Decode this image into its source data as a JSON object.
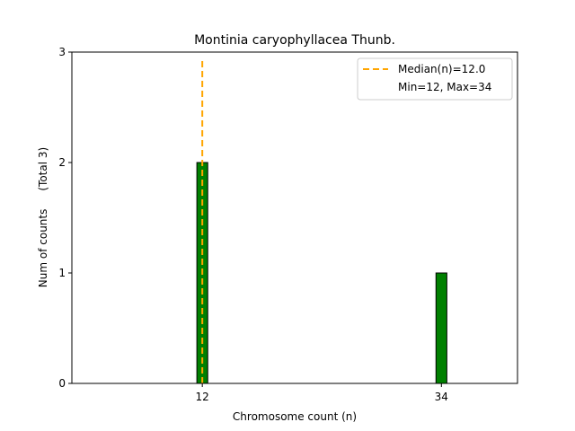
{
  "chart_data": {
    "type": "bar",
    "title": "Montinia caryophyllacea Thunb.",
    "xlabel": "Chromosome count (n)",
    "ylabel": "Num of counts",
    "ylabel_note": "(Total 3)",
    "categories": [
      12,
      34
    ],
    "values": [
      2,
      1
    ],
    "xlim": [
      0,
      41
    ],
    "ylim": [
      0,
      3
    ],
    "yticks": [
      0,
      1,
      2,
      3
    ],
    "xticks": [
      12,
      34
    ],
    "bar_color": "#008000",
    "bar_edge_color": "#000000",
    "median": {
      "value": 12.0,
      "label": "Median(n)=12.0",
      "color": "#FFA500",
      "style": "dashed"
    },
    "legend": {
      "placement": "top-right",
      "entries": [
        "Median(n)=12.0",
        "Min=12, Max=34"
      ]
    },
    "grid": false
  }
}
